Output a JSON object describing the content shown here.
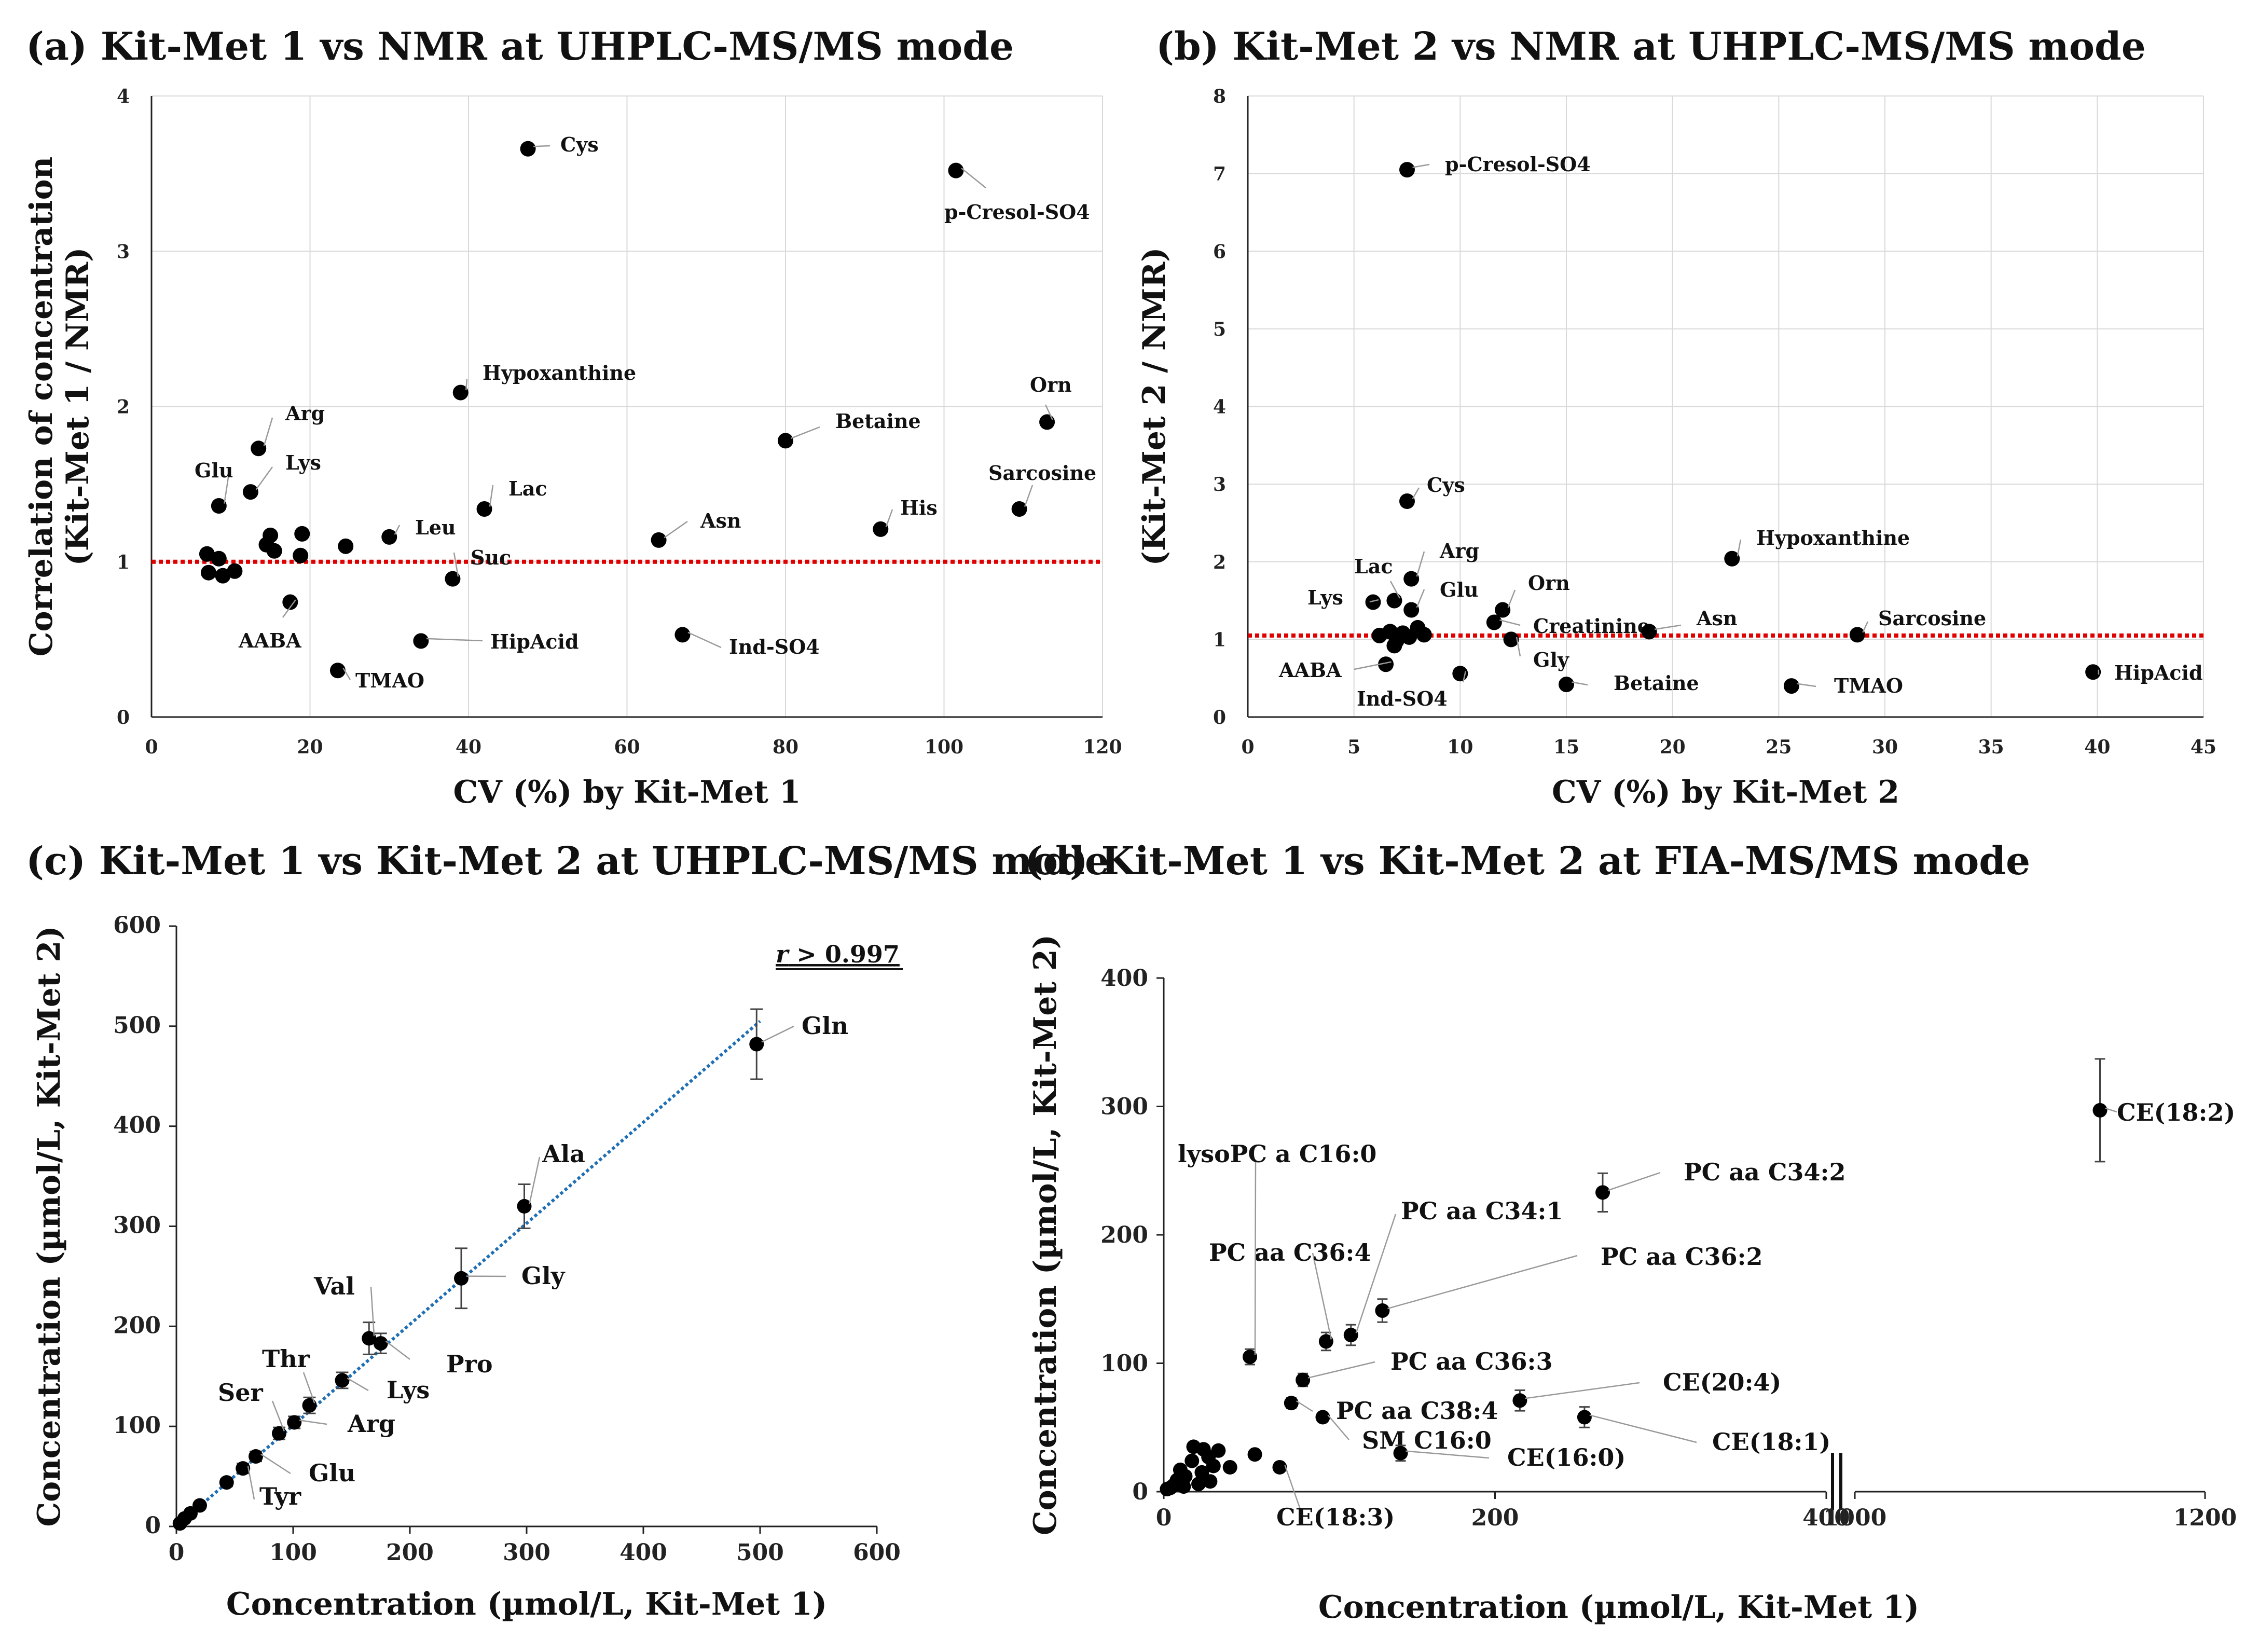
{
  "chart_data": [
    {
      "panel": "a",
      "type": "scatter",
      "title": "(a) Kit-Met 1 vs NMR at UHPLC-MS/MS mode",
      "xlabel": "CV (%) by Kit-Met 1",
      "ylabel_lines": [
        "Correlation of concentration",
        "(Kit-Met 1 / NMR)"
      ],
      "xlim": [
        0,
        120
      ],
      "ylim": [
        0,
        4
      ],
      "xticks": [
        0,
        20,
        40,
        60,
        80,
        100,
        120
      ],
      "yticks": [
        0,
        1,
        2,
        3,
        4
      ],
      "reference_line": {
        "y": 1.0,
        "color": "#e00000",
        "style": "dotted"
      },
      "points": [
        {
          "x": 47.5,
          "y": 3.66,
          "label": "Cys"
        },
        {
          "x": 101.5,
          "y": 3.52,
          "label": "p-Cresol-SO4"
        },
        {
          "x": 39,
          "y": 2.09,
          "label": "Hypoxanthine"
        },
        {
          "x": 113,
          "y": 1.9,
          "label": "Orn"
        },
        {
          "x": 13.5,
          "y": 1.73,
          "label": "Arg"
        },
        {
          "x": 80,
          "y": 1.78,
          "label": "Betaine"
        },
        {
          "x": 12.5,
          "y": 1.45,
          "label": "Lys"
        },
        {
          "x": 8.5,
          "y": 1.36,
          "label": "Glu"
        },
        {
          "x": 42,
          "y": 1.34,
          "label": "Lac"
        },
        {
          "x": 109.5,
          "y": 1.34,
          "label": "Sarcosine"
        },
        {
          "x": 92,
          "y": 1.21,
          "label": "His"
        },
        {
          "x": 30,
          "y": 1.16,
          "label": "Leu"
        },
        {
          "x": 64,
          "y": 1.14,
          "label": "Asn"
        },
        {
          "x": 38,
          "y": 0.89,
          "label": "Suc"
        },
        {
          "x": 17.5,
          "y": 0.74,
          "label": "AABA"
        },
        {
          "x": 34,
          "y": 0.49,
          "label": "HipAcid"
        },
        {
          "x": 67,
          "y": 0.53,
          "label": "Ind-SO4"
        },
        {
          "x": 23.5,
          "y": 0.3,
          "label": "TMAO"
        },
        {
          "x": 7,
          "y": 1.05,
          "label": ""
        },
        {
          "x": 8.5,
          "y": 1.02,
          "label": ""
        },
        {
          "x": 7.2,
          "y": 0.93,
          "label": ""
        },
        {
          "x": 9,
          "y": 0.91,
          "label": ""
        },
        {
          "x": 10.5,
          "y": 0.94,
          "label": ""
        },
        {
          "x": 15,
          "y": 1.17,
          "label": ""
        },
        {
          "x": 14.5,
          "y": 1.11,
          "label": ""
        },
        {
          "x": 15.5,
          "y": 1.07,
          "label": ""
        },
        {
          "x": 19,
          "y": 1.18,
          "label": ""
        },
        {
          "x": 18.8,
          "y": 1.04,
          "label": ""
        },
        {
          "x": 24.5,
          "y": 1.1,
          "label": ""
        }
      ]
    },
    {
      "panel": "b",
      "type": "scatter",
      "title": "(b) Kit-Met 2 vs NMR at UHPLC-MS/MS mode",
      "xlabel": "CV (%) by Kit-Met 2",
      "ylabel_lines": [
        "(Kit-Met 2 / NMR)"
      ],
      "xlim": [
        0,
        45
      ],
      "ylim": [
        0,
        8
      ],
      "xticks": [
        0,
        5,
        10,
        15,
        20,
        25,
        30,
        35,
        40,
        45
      ],
      "yticks": [
        0,
        1,
        2,
        3,
        4,
        5,
        6,
        7,
        8
      ],
      "reference_line": {
        "y": 1.05,
        "color": "#e00000",
        "style": "dotted"
      },
      "points": [
        {
          "x": 7.5,
          "y": 7.05,
          "label": "p-Cresol-SO4"
        },
        {
          "x": 7.5,
          "y": 2.78,
          "label": "Cys"
        },
        {
          "x": 22.8,
          "y": 2.04,
          "label": "Hypoxanthine"
        },
        {
          "x": 7.7,
          "y": 1.78,
          "label": "Arg"
        },
        {
          "x": 6.9,
          "y": 1.5,
          "label": "Lac"
        },
        {
          "x": 5.9,
          "y": 1.48,
          "label": "Lys"
        },
        {
          "x": 7.7,
          "y": 1.38,
          "label": "Glu"
        },
        {
          "x": 12,
          "y": 1.38,
          "label": "Orn"
        },
        {
          "x": 11.6,
          "y": 1.22,
          "label": "Creatinine"
        },
        {
          "x": 18.9,
          "y": 1.1,
          "label": "Asn"
        },
        {
          "x": 28.7,
          "y": 1.06,
          "label": "Sarcosine"
        },
        {
          "x": 12.4,
          "y": 1.0,
          "label": "Gly"
        },
        {
          "x": 6.5,
          "y": 0.68,
          "label": "AABA"
        },
        {
          "x": 10,
          "y": 0.56,
          "label": "Ind-SO4"
        },
        {
          "x": 15,
          "y": 0.42,
          "label": "Betaine"
        },
        {
          "x": 25.6,
          "y": 0.4,
          "label": "TMAO"
        },
        {
          "x": 39.8,
          "y": 0.58,
          "label": "HipAcid"
        },
        {
          "x": 6.2,
          "y": 1.05,
          "label": ""
        },
        {
          "x": 6.7,
          "y": 1.1,
          "label": ""
        },
        {
          "x": 7.0,
          "y": 0.98,
          "label": ""
        },
        {
          "x": 7.3,
          "y": 1.08,
          "label": ""
        },
        {
          "x": 7.6,
          "y": 1.03,
          "label": ""
        },
        {
          "x": 8.0,
          "y": 1.15,
          "label": ""
        },
        {
          "x": 8.3,
          "y": 1.06,
          "label": ""
        },
        {
          "x": 6.9,
          "y": 0.92,
          "label": ""
        }
      ]
    },
    {
      "panel": "c",
      "type": "scatter",
      "title": "(c) Kit-Met 1 vs Kit-Met 2 at UHPLC-MS/MS mode",
      "xlabel": "Concentration (µmol/L, Kit-Met 1)",
      "ylabel": "Concentration (µmol/L, Kit-Met 2)",
      "annotation": "r > 0.997",
      "annotation_parts": [
        "r",
        " > 0.997"
      ],
      "xlim": [
        0,
        600
      ],
      "ylim": [
        0,
        600
      ],
      "xticks": [
        0,
        100,
        200,
        300,
        400,
        500,
        600
      ],
      "yticks": [
        0,
        100,
        200,
        300,
        400,
        500,
        600
      ],
      "trendline": {
        "x": [
          0,
          500
        ],
        "y": [
          0,
          505
        ],
        "color": "#1f6fb5",
        "style": "dotted"
      },
      "points": [
        {
          "x": 497,
          "y": 482,
          "err": 35,
          "label": "Gln"
        },
        {
          "x": 298,
          "y": 320,
          "err": 22,
          "label": "Ala"
        },
        {
          "x": 244,
          "y": 248,
          "err": 30,
          "label": "Gly"
        },
        {
          "x": 165,
          "y": 188,
          "err": 16,
          "label": "Val"
        },
        {
          "x": 175,
          "y": 183,
          "err": 10,
          "label": "Pro"
        },
        {
          "x": 142,
          "y": 146,
          "err": 8,
          "label": "Lys"
        },
        {
          "x": 114,
          "y": 121,
          "err": 8,
          "label": "Thr"
        },
        {
          "x": 101,
          "y": 104,
          "err": 6,
          "label": "Arg"
        },
        {
          "x": 88,
          "y": 93,
          "err": 6,
          "label": "Ser"
        },
        {
          "x": 68,
          "y": 70,
          "err": 5,
          "label": "Glu"
        },
        {
          "x": 57,
          "y": 58,
          "err": 5,
          "label": "Tyr"
        },
        {
          "x": 43,
          "y": 44,
          "err": 4,
          "label": ""
        },
        {
          "x": 20,
          "y": 21,
          "err": 2,
          "label": ""
        },
        {
          "x": 12,
          "y": 13,
          "err": 2,
          "label": ""
        },
        {
          "x": 7,
          "y": 8,
          "err": 1,
          "label": ""
        },
        {
          "x": 3,
          "y": 3,
          "err": 1,
          "label": ""
        }
      ]
    },
    {
      "panel": "d",
      "type": "scatter",
      "title": "(d) Kit-Met 1 vs Kit-Met 2 at FIA-MS/MS mode",
      "xlabel": "Concentration (µmol/L, Kit-Met 1)",
      "ylabel": "Concentration (µmol/L, Kit-Met 2)",
      "xlim_left": [
        0,
        400
      ],
      "xlim_right": [
        1000,
        1200
      ],
      "ylim": [
        0,
        400
      ],
      "xticks": [
        0,
        200,
        400,
        1000,
        1200
      ],
      "yticks": [
        0,
        100,
        200,
        300,
        400
      ],
      "axis_break": true,
      "points": [
        {
          "x": 1140,
          "y": 297,
          "err": 40,
          "label": "CE(18:2)"
        },
        {
          "x": 265,
          "y": 233,
          "err": 15,
          "label": "PC aa C34:2"
        },
        {
          "x": 132,
          "y": 141,
          "err": 9,
          "label": "PC aa C36:2"
        },
        {
          "x": 113,
          "y": 122,
          "err": 8,
          "label": "PC aa C34:1"
        },
        {
          "x": 98,
          "y": 117,
          "err": 7,
          "label": "PC aa C36:4"
        },
        {
          "x": 52,
          "y": 105,
          "err": 6,
          "label": "lysoPC a C16:0"
        },
        {
          "x": 84,
          "y": 87,
          "err": 5,
          "label": "PC aa C36:3"
        },
        {
          "x": 77,
          "y": 69,
          "err": 4,
          "label": "PC aa C38:4"
        },
        {
          "x": 96,
          "y": 58,
          "err": 3,
          "label": "SM C16:0"
        },
        {
          "x": 215,
          "y": 71,
          "err": 8,
          "label": "CE(20:4)"
        },
        {
          "x": 254,
          "y": 58,
          "err": 8,
          "label": "CE(18:1)"
        },
        {
          "x": 143,
          "y": 30,
          "err": 6,
          "label": "CE(16:0)"
        },
        {
          "x": 70,
          "y": 19,
          "err": 2,
          "label": "CE(18:3)"
        },
        {
          "x": 55,
          "y": 29,
          "err": 2,
          "label": ""
        },
        {
          "x": 40,
          "y": 19,
          "err": 1,
          "label": ""
        },
        {
          "x": 33,
          "y": 32,
          "err": 2,
          "label": ""
        },
        {
          "x": 27,
          "y": 27,
          "err": 2,
          "label": ""
        },
        {
          "x": 24,
          "y": 33,
          "err": 2,
          "label": ""
        },
        {
          "x": 18,
          "y": 35,
          "err": 2,
          "label": ""
        },
        {
          "x": 30,
          "y": 20,
          "err": 1,
          "label": ""
        },
        {
          "x": 23,
          "y": 15,
          "err": 1,
          "label": ""
        },
        {
          "x": 17,
          "y": 24,
          "err": 1,
          "label": ""
        },
        {
          "x": 13,
          "y": 12,
          "err": 1,
          "label": ""
        },
        {
          "x": 10,
          "y": 17,
          "err": 1,
          "label": ""
        },
        {
          "x": 8,
          "y": 9,
          "err": 1,
          "label": ""
        },
        {
          "x": 28,
          "y": 8,
          "err": 1,
          "label": ""
        },
        {
          "x": 21,
          "y": 6,
          "err": 1,
          "label": ""
        },
        {
          "x": 6,
          "y": 5,
          "err": 1,
          "label": ""
        },
        {
          "x": 4,
          "y": 3,
          "err": 1,
          "label": ""
        },
        {
          "x": 2,
          "y": 2,
          "err": 1,
          "label": ""
        },
        {
          "x": 12,
          "y": 4,
          "err": 1,
          "label": ""
        }
      ]
    }
  ]
}
